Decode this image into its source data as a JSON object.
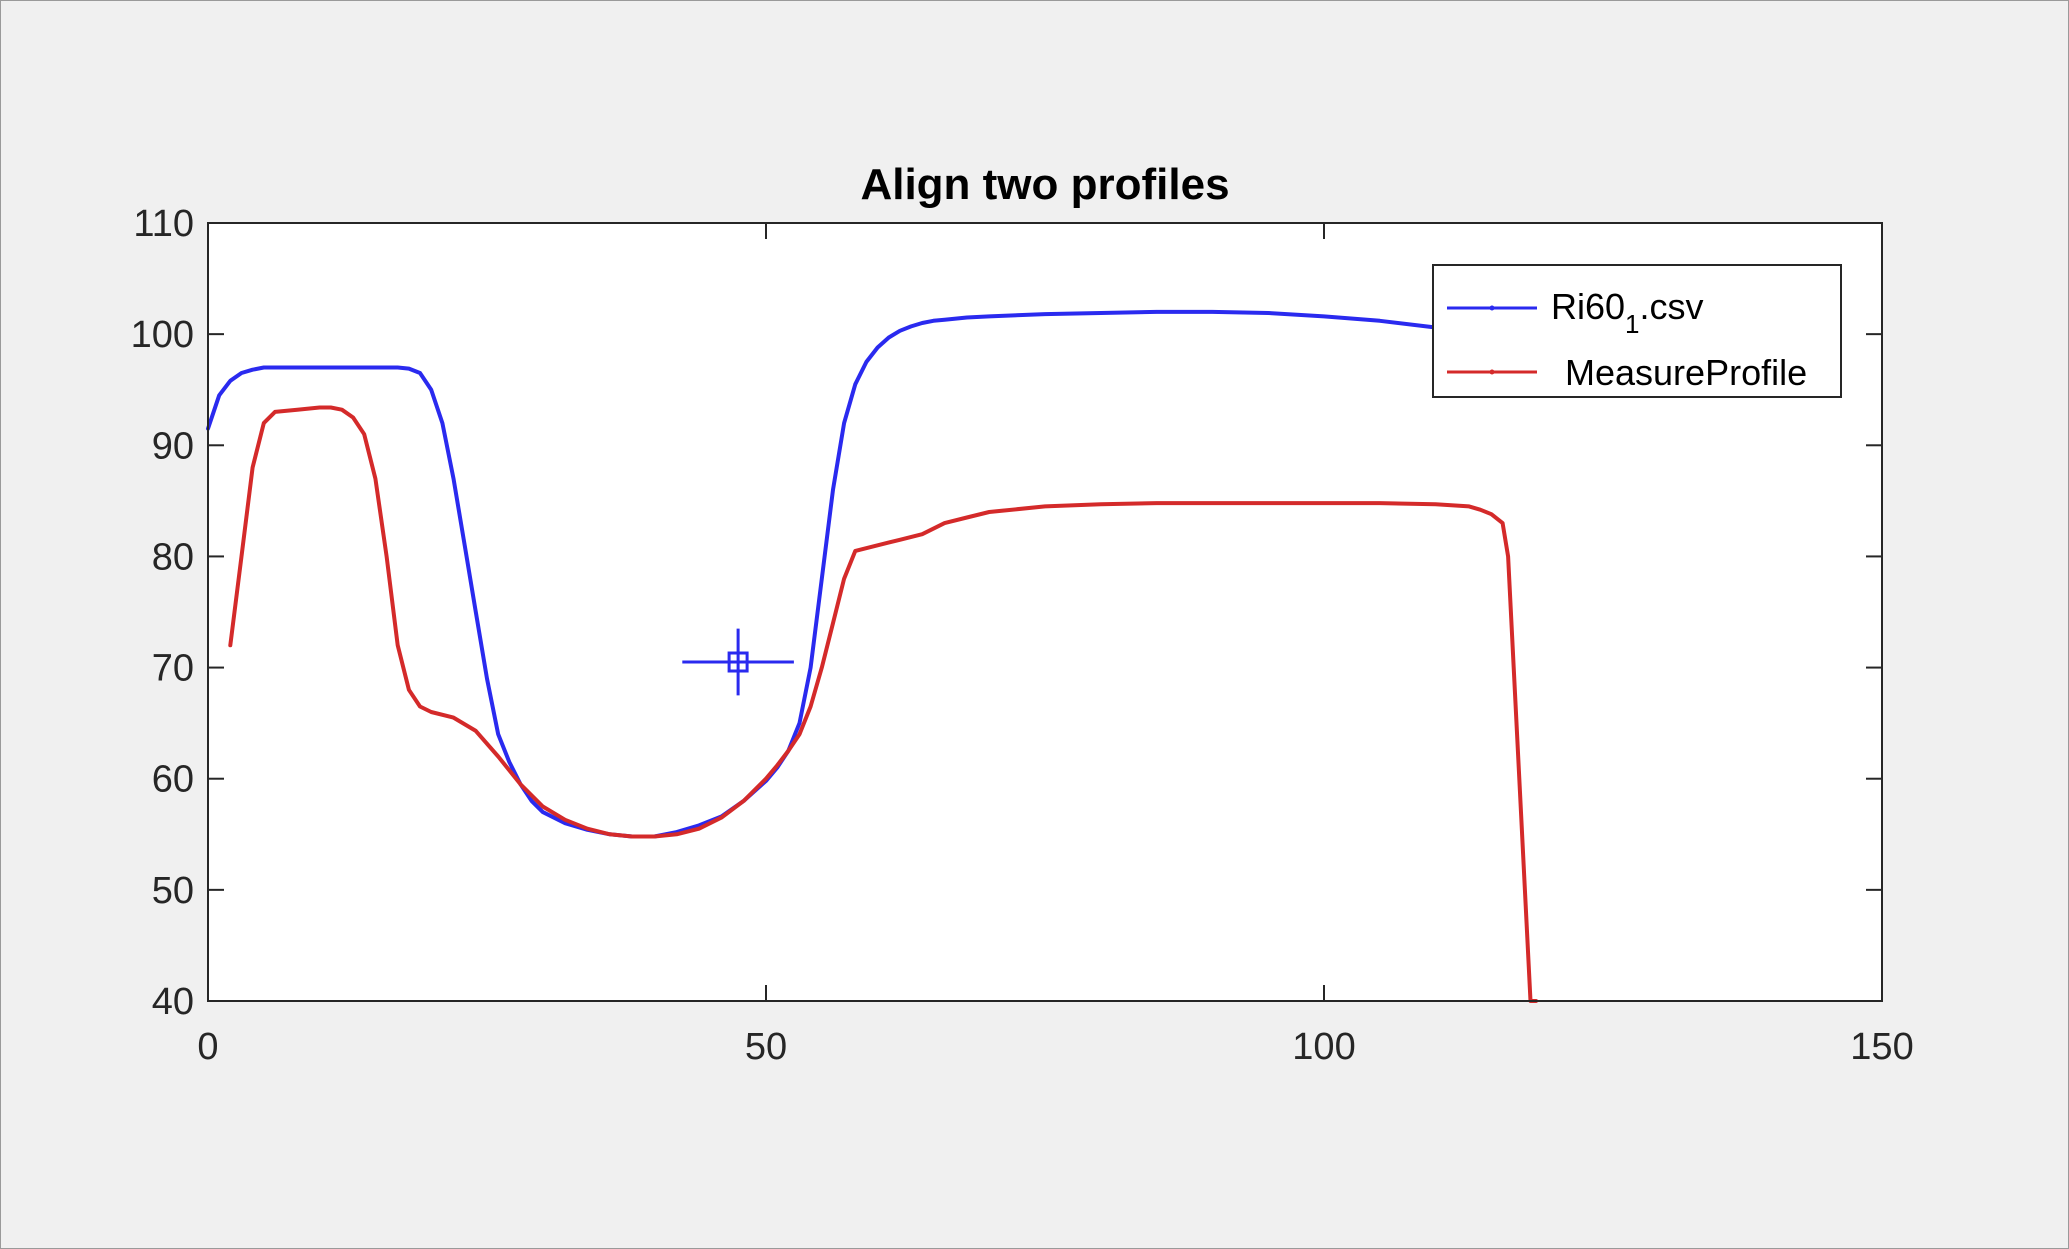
{
  "chart_data": {
    "type": "line",
    "title": "Align two profiles",
    "xlabel": "",
    "ylabel": "",
    "xlim": [
      0,
      150
    ],
    "ylim": [
      40,
      110
    ],
    "xticks": [
      "0",
      "50",
      "100",
      "150"
    ],
    "yticks": [
      "40",
      "50",
      "60",
      "70",
      "80",
      "90",
      "100",
      "110"
    ],
    "xtick_values": [
      0,
      50,
      100,
      150
    ],
    "ytick_values": [
      40,
      50,
      60,
      70,
      80,
      90,
      100,
      110
    ],
    "grid": false,
    "legend_position": "top-right",
    "series": [
      {
        "name": "Ri60",
        "name_subscript": "1",
        "name_suffix": ".csv",
        "color": "#2a2aef",
        "x": [
          0,
          1,
          2,
          3,
          4,
          5,
          8,
          10,
          12,
          15,
          17,
          18,
          19,
          20,
          21,
          22,
          23,
          24,
          25,
          26,
          27,
          28,
          29,
          30,
          32,
          34,
          36,
          38,
          40,
          42,
          44,
          46,
          48,
          50,
          51,
          52,
          53,
          54,
          55,
          56,
          57,
          58,
          59,
          60,
          61,
          62,
          63,
          64,
          65,
          66,
          68,
          70,
          75,
          80,
          85,
          90,
          95,
          100,
          105,
          110,
          113
        ],
        "y": [
          91.5,
          94.5,
          95.8,
          96.5,
          96.8,
          97,
          97,
          97,
          97,
          97,
          97,
          96.9,
          96.5,
          95,
          92,
          87,
          81,
          75,
          69,
          64,
          61.5,
          59.5,
          58,
          57,
          56,
          55.4,
          55,
          54.8,
          54.8,
          55.2,
          55.8,
          56.6,
          58,
          59.8,
          61,
          62.5,
          65,
          70,
          78,
          86,
          92,
          95.5,
          97.5,
          98.8,
          99.7,
          100.3,
          100.7,
          101,
          101.2,
          101.3,
          101.5,
          101.6,
          101.8,
          101.9,
          102,
          102,
          101.9,
          101.6,
          101.2,
          100.6,
          100.3
        ]
      },
      {
        "name": "MeasureProfile",
        "color": "#d42a2a",
        "x": [
          2,
          3,
          4,
          5,
          6,
          8,
          10,
          11,
          12,
          13,
          14,
          15,
          16,
          17,
          18,
          19,
          20,
          22,
          24,
          26,
          28,
          30,
          32,
          34,
          36,
          38,
          40,
          42,
          44,
          46,
          48,
          50,
          51,
          52,
          53,
          54,
          55,
          56,
          57,
          58,
          60,
          62,
          64,
          66,
          68,
          70,
          75,
          80,
          85,
          90,
          95,
          100,
          105,
          110,
          113,
          114,
          115,
          116,
          116.5,
          117,
          117.5,
          118,
          118.5,
          119
        ],
        "y": [
          72,
          80,
          88,
          92,
          93,
          93.2,
          93.4,
          93.4,
          93.2,
          92.5,
          91,
          87,
          80,
          72,
          68,
          66.5,
          66,
          65.5,
          64.3,
          62,
          59.5,
          57.5,
          56.3,
          55.5,
          55,
          54.8,
          54.8,
          55,
          55.5,
          56.5,
          58,
          60,
          61.2,
          62.5,
          64,
          66.5,
          70,
          74,
          78,
          80.5,
          81,
          81.5,
          82,
          83,
          83.5,
          84,
          84.5,
          84.7,
          84.8,
          84.8,
          84.8,
          84.8,
          84.8,
          84.7,
          84.5,
          84.2,
          83.8,
          83,
          80,
          70,
          60,
          50,
          40,
          40
        ]
      }
    ],
    "annotations": [
      {
        "type": "crosshair-marker",
        "x": 47.5,
        "y": 70.5,
        "x_halfwidth": 5,
        "y_halfwidth": 3,
        "color": "#2a2aef"
      }
    ]
  }
}
